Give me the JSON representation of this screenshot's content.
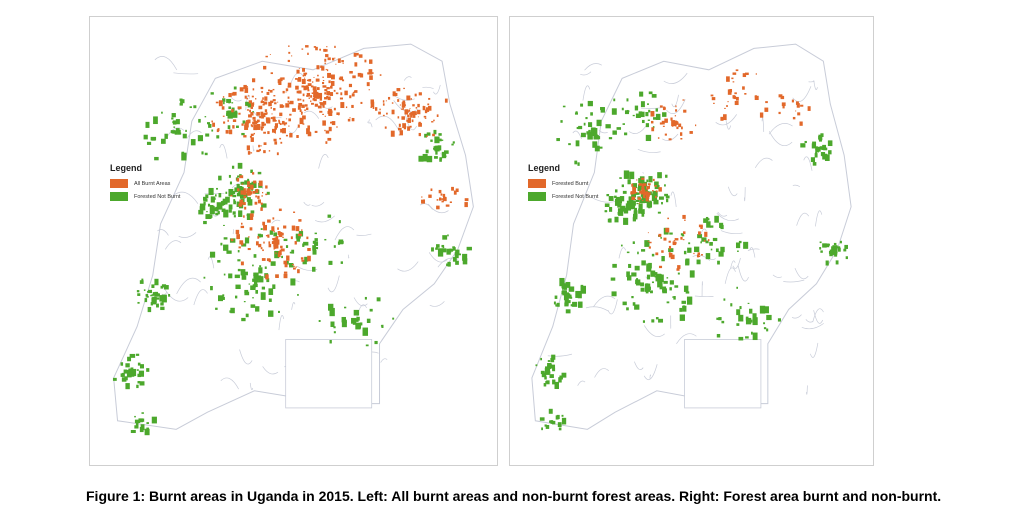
{
  "figure": {
    "caption": "Figure 1: Burnt areas in Uganda in 2015. Left: All burnt areas and non-burnt forest areas. Right: Forest area burnt and non-burnt."
  },
  "colors": {
    "burnt": "#e2682a",
    "forest": "#4ca82c",
    "boundary": "#c8ccd8"
  },
  "maps": [
    {
      "legend_title": "Legend",
      "legend_items": [
        {
          "label": "All Burnt Areas",
          "color": "#e2682a"
        },
        {
          "label": "Forested Not Burnt",
          "color": "#4ca82c"
        }
      ]
    },
    {
      "legend_title": "Legend",
      "legend_items": [
        {
          "label": "Forested Burnt",
          "color": "#e2682a"
        },
        {
          "label": "Forested Not Burnt",
          "color": "#4ca82c"
        }
      ]
    }
  ]
}
